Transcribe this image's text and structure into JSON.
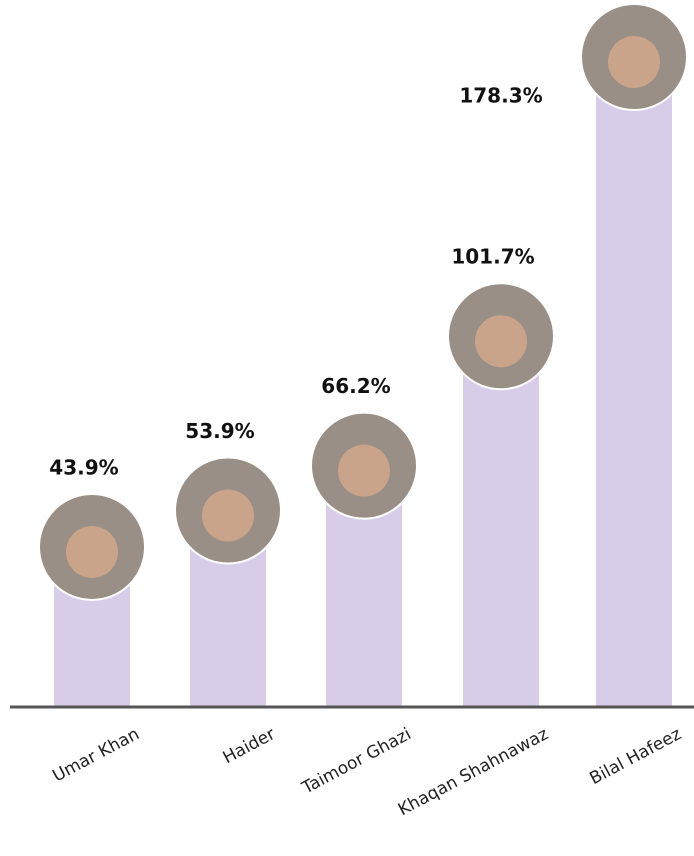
{
  "chart_data": {
    "type": "bar",
    "categories": [
      "Umar Khan",
      "Haider",
      "Taimoor Ghazi",
      "Khaqan Shahnawaz",
      "Bilal Hafeez"
    ],
    "values": [
      43.9,
      53.9,
      66.2,
      101.7,
      178.3
    ],
    "value_labels": [
      "43.9%",
      "53.9%",
      "66.2%",
      "101.7%",
      "178.3%"
    ],
    "color": "#d8cde9"
  }
}
